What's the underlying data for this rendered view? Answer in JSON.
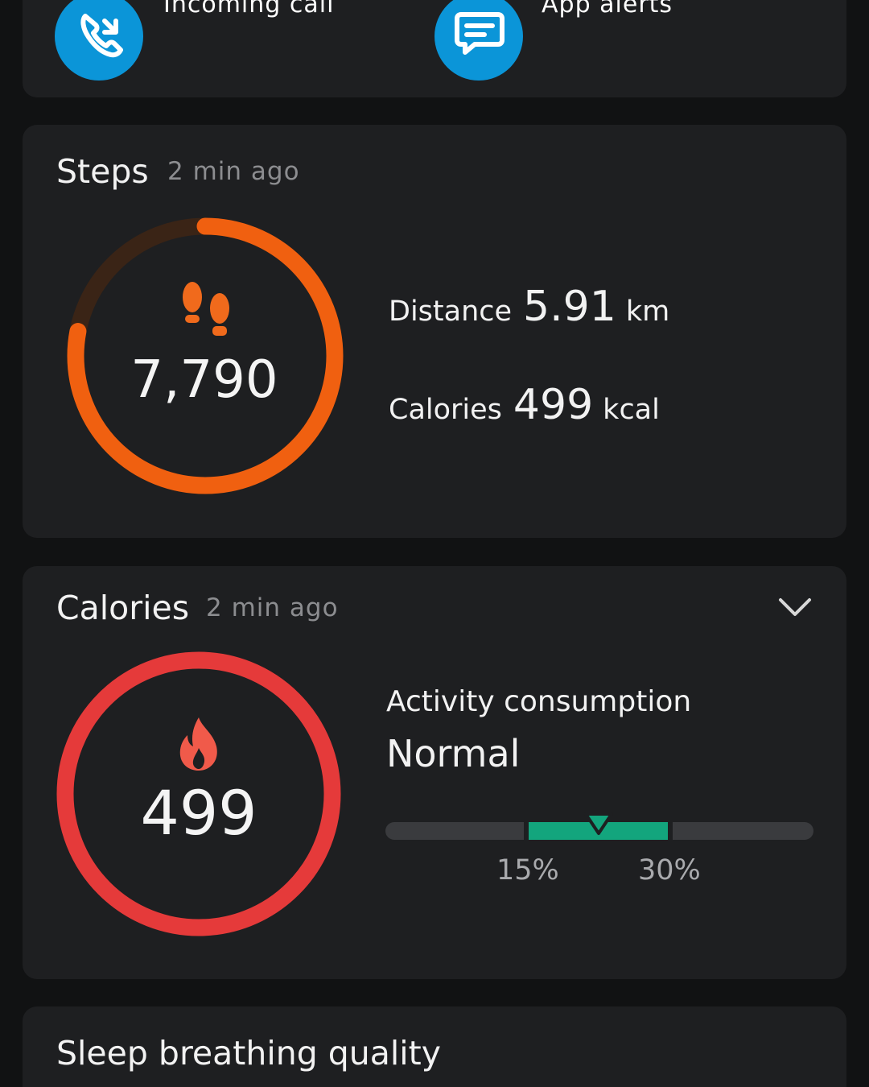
{
  "notifications": {
    "items": [
      {
        "label": "Incoming call",
        "icon": "phone-icon"
      },
      {
        "label": "App alerts",
        "icon": "message-icon"
      }
    ],
    "accent": "#0b95d8"
  },
  "steps": {
    "title": "Steps",
    "updated": "2 min ago",
    "value": "7,790",
    "progress": 0.78,
    "icon": "footprints-icon",
    "color": "#f06010",
    "distance": {
      "label": "Distance",
      "value": "5.91",
      "unit": "km"
    },
    "calories": {
      "label": "Calories",
      "value": "499",
      "unit": "kcal"
    }
  },
  "calories": {
    "title": "Calories",
    "updated": "2 min ago",
    "value": "499",
    "icon": "flame-icon",
    "color": "#e53a3a",
    "consumption_label": "Activity consumption",
    "consumption_status": "Normal",
    "range_color": "#13a57d",
    "range_low": "15%",
    "range_high": "30%"
  },
  "sleep": {
    "title": "Sleep breathing quality"
  }
}
